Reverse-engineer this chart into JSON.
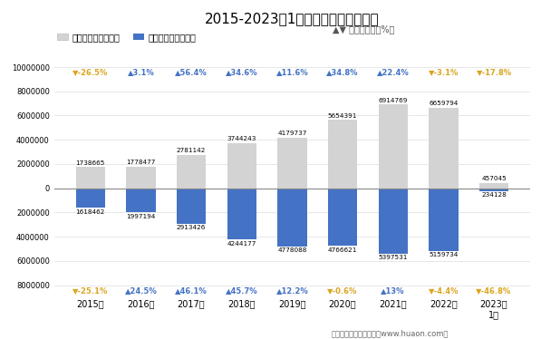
{
  "title": "2015-2023年1月成都海关进、出口额",
  "categories": [
    "2015年",
    "2016年",
    "2017年",
    "2018年",
    "2019年",
    "2020年",
    "2021年",
    "2022年",
    "2023年\n1月"
  ],
  "export_values": [
    1738665,
    1778477,
    2781142,
    3744243,
    4179737,
    5654391,
    6914769,
    6659794,
    457045
  ],
  "import_values": [
    -1618462,
    -1997194,
    -2913426,
    -4244177,
    -4778088,
    -4766621,
    -5397531,
    -5159734,
    -234128
  ],
  "export_color": "#d3d3d3",
  "import_color": "#4472c4",
  "export_label": "出口总额（万美元）",
  "import_label": "进口总额（万美元）",
  "growth_label": "同比增长率（%）",
  "ylim": [
    -8800000,
    10500000
  ],
  "yticks": [
    -8000000,
    -6000000,
    -4000000,
    -2000000,
    0,
    2000000,
    4000000,
    6000000,
    8000000,
    10000000
  ],
  "export_growth": [
    "▼-26.5%",
    "▲3.1%",
    "▲56.4%",
    "▲34.6%",
    "▲11.6%",
    "▲34.8%",
    "▲22.4%",
    "▼-3.1%",
    "▼-17.8%"
  ],
  "import_growth": [
    "▼-25.1%",
    "▲24.5%",
    "▲46.1%",
    "▲45.7%",
    "▲12.2%",
    "▼-0.6%",
    "▲13%",
    "▼-4.4%",
    "▼-46.8%"
  ],
  "export_growth_up": [
    false,
    true,
    true,
    true,
    true,
    true,
    true,
    false,
    false
  ],
  "import_growth_up": [
    false,
    true,
    true,
    true,
    true,
    false,
    true,
    false,
    false
  ],
  "up_color": "#4472c4",
  "down_color": "#DAA520",
  "footer": "制图：华经产业研究院（www.huaon.com）"
}
